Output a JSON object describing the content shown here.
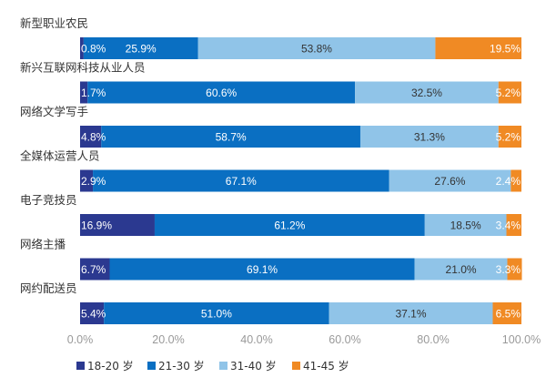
{
  "chart_data": {
    "type": "bar",
    "orientation": "horizontal",
    "stacked": true,
    "categories": [
      "新型职业农民",
      "新兴互联网科技从业人员",
      "网络文学写手",
      "全媒体运营人员",
      "电子竞技员",
      "网络主播",
      "网约配送员"
    ],
    "series": [
      {
        "name": "18-20 岁",
        "color": "#2b3990",
        "values": [
          0.8,
          1.7,
          4.8,
          2.9,
          16.9,
          6.7,
          5.4
        ],
        "labels": [
          "0.8%",
          "1.7%",
          "4.8%",
          "2.9%",
          "16.9%",
          "6.7%",
          "5.4%"
        ]
      },
      {
        "name": "21-30 岁",
        "color": "#0a6fc2",
        "values": [
          25.9,
          60.6,
          58.7,
          67.1,
          61.2,
          69.1,
          51.0
        ],
        "labels": [
          "25.9%",
          "60.6%",
          "58.7%",
          "67.1%",
          "61.2%",
          "69.1%",
          "51.0%"
        ]
      },
      {
        "name": "31-40 岁",
        "color": "#90c4e8",
        "values": [
          53.8,
          32.5,
          31.3,
          27.6,
          18.5,
          21.0,
          37.1
        ],
        "labels": [
          "53.8%",
          "32.5%",
          "31.3%",
          "27.6%",
          "18.5%",
          "21.0%",
          "37.1%"
        ]
      },
      {
        "name": "41-45 岁",
        "color": "#f08a24",
        "values": [
          19.5,
          5.2,
          5.2,
          2.4,
          3.4,
          3.3,
          6.5
        ],
        "labels": [
          "19.5%",
          "5.2%",
          "5.2%",
          "2.4%",
          "3.4%",
          "3.3%",
          "6.5%"
        ]
      }
    ],
    "xlim": [
      0,
      100
    ],
    "xticks": [
      "0.0%",
      "20.0%",
      "40.0%",
      "60.0%",
      "80.0%",
      "100.0%"
    ],
    "grid": false,
    "legend": "bottom"
  }
}
